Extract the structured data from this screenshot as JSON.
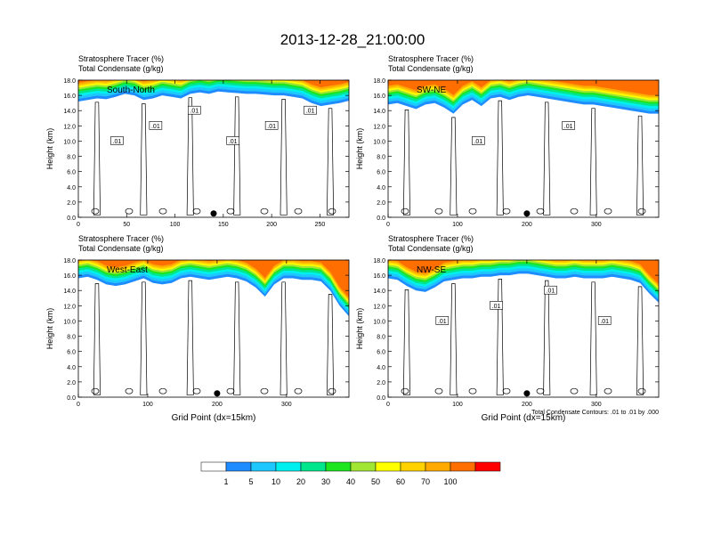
{
  "title": "2013-12-28_21:00:00",
  "colors": {
    "levels": [
      "#ffffff",
      "#1e8cff",
      "#1ec8ff",
      "#00f0f0",
      "#00e68c",
      "#1ee61e",
      "#a0e632",
      "#ffff00",
      "#ffd200",
      "#ffaa00",
      "#ff6e00",
      "#ff0000"
    ],
    "contour_color": "#000000"
  },
  "chart_data": [
    {
      "type": "heatmap",
      "panel": "South-North",
      "label_left_1": "Stratosphere Tracer   (%)",
      "label_left_2": "Total Condensate   (g/kg)",
      "ylabel": "Height (km)",
      "xlabel": "",
      "xlim": [
        0,
        280
      ],
      "ylim": [
        0,
        18
      ],
      "xticks": [
        "0",
        "50",
        "100",
        "150",
        "200",
        "250"
      ],
      "yticks": [
        "0.0",
        "2.0",
        "4.0",
        "6.0",
        "8.0",
        "10.0",
        "12.0",
        "14.0",
        "16.0",
        "18.0"
      ],
      "tracer_base_km": [
        15.2,
        15.4,
        15.6,
        15.5,
        15.8,
        16.2,
        16.0,
        15.4,
        15.6,
        16.0,
        15.8,
        15.6,
        16.2,
        16.4,
        16.2,
        16.5,
        16.4,
        16.3,
        16.2,
        16.2,
        16.1,
        16.0,
        16.0,
        15.8,
        15.6,
        15.0,
        14.6,
        14.8,
        15.0,
        15.3
      ],
      "marker_x": 140,
      "contour_labels": [
        ".01",
        ".01",
        ".01",
        ".01",
        ".01",
        ".01"
      ]
    },
    {
      "type": "heatmap",
      "panel": "SW-NE",
      "label_left_1": "Stratosphere Tracer   (%)",
      "label_left_2": "Total Condensate   (g/kg)",
      "ylabel": "Height (km)",
      "xlabel": "",
      "xlim": [
        0,
        390
      ],
      "ylim": [
        0,
        18
      ],
      "xticks": [
        "0",
        "100",
        "200",
        "300"
      ],
      "yticks": [
        "0.0",
        "2.0",
        "4.0",
        "6.0",
        "8.0",
        "10.0",
        "12.0",
        "14.0",
        "16.0",
        "18.0"
      ],
      "tracer_base_km": [
        14.8,
        15.0,
        14.6,
        14.2,
        14.8,
        15.0,
        14.4,
        13.6,
        14.8,
        15.4,
        14.6,
        15.6,
        15.8,
        15.4,
        15.8,
        16.0,
        15.8,
        15.6,
        15.4,
        15.2,
        15.0,
        14.8,
        14.8,
        14.6,
        14.4,
        14.2,
        14.0,
        13.8,
        13.6,
        13.6
      ],
      "marker_x": 200,
      "contour_labels": [
        ".01",
        ".01"
      ]
    },
    {
      "type": "heatmap",
      "panel": "West-East",
      "label_left_1": "Stratosphere Tracer   (%)",
      "label_left_2": "Total Condensate   (g/kg)",
      "ylabel": "Height (km)",
      "xlabel": "Grid Point (dx=15km)",
      "xlim": [
        0,
        390
      ],
      "ylim": [
        0,
        18
      ],
      "xticks": [
        "0",
        "100",
        "200",
        "300"
      ],
      "yticks": [
        "0.0",
        "2.0",
        "4.0",
        "6.0",
        "8.0",
        "10.0",
        "12.0",
        "14.0",
        "16.0",
        "18.0"
      ],
      "tracer_base_km": [
        15.6,
        15.8,
        15.4,
        14.8,
        14.6,
        14.8,
        15.2,
        15.6,
        15.0,
        14.8,
        15.0,
        15.6,
        15.8,
        15.6,
        15.4,
        15.6,
        15.8,
        15.6,
        15.2,
        14.4,
        13.2,
        14.8,
        15.6,
        15.6,
        15.4,
        15.4,
        15.2,
        14.0,
        12.0,
        10.6
      ],
      "marker_x": 200,
      "contour_labels": []
    },
    {
      "type": "heatmap",
      "panel": "NW-SE",
      "label_left_1": "Stratosphere Tracer   (%)",
      "label_left_2": "Total Condensate   (g/kg)",
      "ylabel": "Height (km)",
      "xlabel": "Grid Point (dx=15km)",
      "xlim": [
        0,
        390
      ],
      "ylim": [
        0,
        18
      ],
      "xticks": [
        "0",
        "100",
        "200",
        "300"
      ],
      "yticks": [
        "0.0",
        "2.0",
        "4.0",
        "6.0",
        "8.0",
        "10.0",
        "12.0",
        "14.0",
        "16.0",
        "18.0"
      ],
      "tracer_base_km": [
        15.6,
        15.4,
        14.6,
        14.0,
        13.8,
        14.4,
        15.2,
        15.4,
        15.6,
        15.6,
        15.8,
        15.8,
        16.0,
        16.0,
        16.2,
        16.2,
        16.0,
        15.8,
        15.6,
        15.6,
        15.8,
        15.6,
        15.6,
        15.6,
        15.8,
        15.6,
        15.4,
        15.0,
        13.6,
        12.4
      ],
      "marker_x": 200,
      "contour_labels": [
        ".01",
        ".01",
        ".01",
        ".01"
      ],
      "footnote": "Total Condensate Contours: .01 to .01 by .000"
    }
  ],
  "colorbar": {
    "labels": [
      "1",
      "5",
      "10",
      "20",
      "30",
      "40",
      "50",
      "60",
      "70",
      "100"
    ]
  }
}
